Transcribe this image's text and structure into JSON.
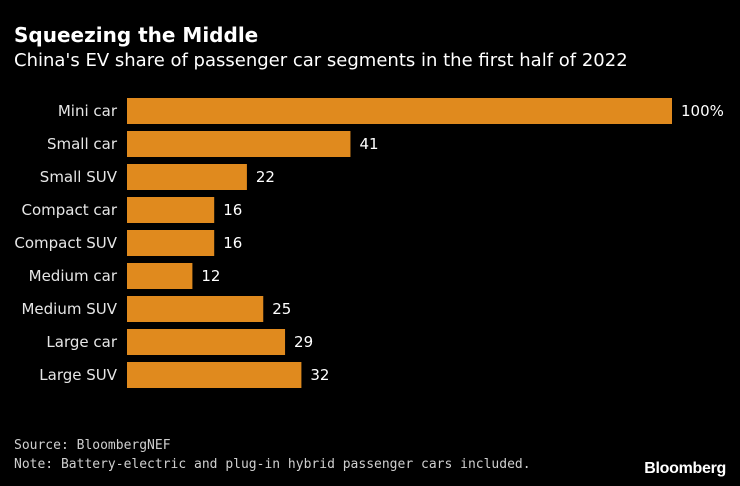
{
  "title": "Squeezing the Middle",
  "subtitle": "China's EV share of passenger car segments in the first half of 2022",
  "source": "Source: BloombergNEF",
  "note": "Note: Battery-electric and plug-in hybrid passenger cars included.",
  "brand": "Bloomberg",
  "colors": {
    "bar": "#E08A1E",
    "background": "#000000",
    "text": "#FFFFFF"
  },
  "chart_data": {
    "type": "bar",
    "orientation": "horizontal",
    "title": "Squeezing the Middle",
    "subtitle": "China's EV share of passenger car segments in the first half of 2022",
    "categories": [
      "Mini car",
      "Small car",
      "Small SUV",
      "Compact car",
      "Compact SUV",
      "Medium car",
      "Medium SUV",
      "Large car",
      "Large SUV"
    ],
    "values": [
      100,
      41,
      22,
      16,
      16,
      12,
      25,
      29,
      32
    ],
    "value_labels": [
      "100%",
      "41",
      "22",
      "16",
      "16",
      "12",
      "25",
      "29",
      "32"
    ],
    "unit": "%",
    "xlim": [
      0,
      100
    ],
    "grid": false,
    "xlabel": "",
    "ylabel": ""
  }
}
